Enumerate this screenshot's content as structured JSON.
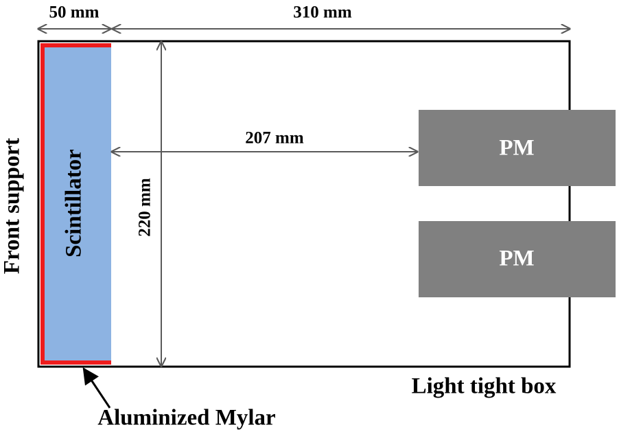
{
  "dimensions": {
    "scintillator_width": "50 mm",
    "box_length": "310 mm",
    "scintillator_to_pm": "207 mm",
    "box_height": "220 mm"
  },
  "labels": {
    "scintillator": "Scintillator",
    "front_support": "Front support",
    "light_tight_box": "Light tight box",
    "aluminized_mylar": "Aluminized Mylar"
  },
  "pms": [
    {
      "label": "PM"
    },
    {
      "label": "PM"
    }
  ]
}
